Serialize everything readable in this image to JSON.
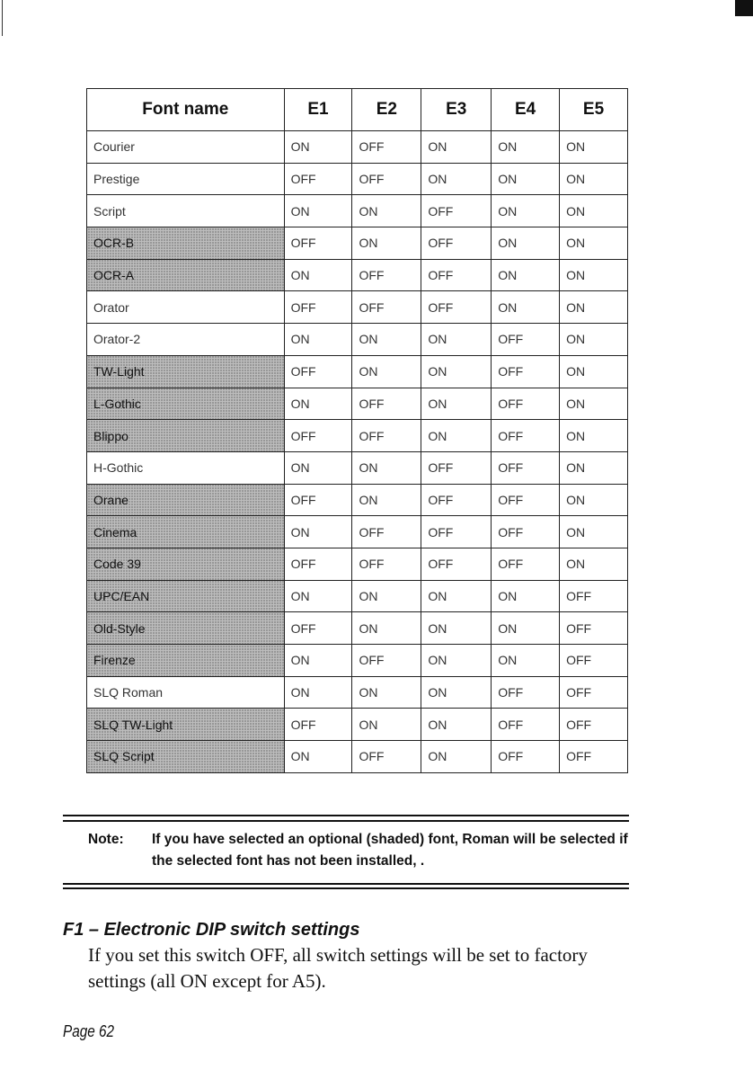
{
  "table": {
    "headers": [
      "Font name",
      "E1",
      "E2",
      "E3",
      "E4",
      "E5"
    ],
    "rows": [
      {
        "name": "Courier",
        "shaded": false,
        "values": [
          "ON",
          "OFF",
          "ON",
          "ON",
          "ON"
        ]
      },
      {
        "name": "Prestige",
        "shaded": false,
        "values": [
          "OFF",
          "OFF",
          "ON",
          "ON",
          "ON"
        ]
      },
      {
        "name": "Script",
        "shaded": false,
        "values": [
          "ON",
          "ON",
          "OFF",
          "ON",
          "ON"
        ]
      },
      {
        "name": "OCR-B",
        "shaded": true,
        "values": [
          "OFF",
          "ON",
          "OFF",
          "ON",
          "ON"
        ]
      },
      {
        "name": "OCR-A",
        "shaded": true,
        "values": [
          "ON",
          "OFF",
          "OFF",
          "ON",
          "ON"
        ]
      },
      {
        "name": "Orator",
        "shaded": false,
        "values": [
          "OFF",
          "OFF",
          "OFF",
          "ON",
          "ON"
        ]
      },
      {
        "name": "Orator-2",
        "shaded": false,
        "values": [
          "ON",
          "ON",
          "ON",
          "OFF",
          "ON"
        ]
      },
      {
        "name": "TW-Light",
        "shaded": true,
        "values": [
          "OFF",
          "ON",
          "ON",
          "OFF",
          "ON"
        ]
      },
      {
        "name": "L-Gothic",
        "shaded": true,
        "values": [
          "ON",
          "OFF",
          "ON",
          "OFF",
          "ON"
        ]
      },
      {
        "name": "Blippo",
        "shaded": true,
        "values": [
          "OFF",
          "OFF",
          "ON",
          "OFF",
          "ON"
        ]
      },
      {
        "name": "H-Gothic",
        "shaded": false,
        "values": [
          "ON",
          "ON",
          "OFF",
          "OFF",
          "ON"
        ]
      },
      {
        "name": "Orane",
        "shaded": true,
        "values": [
          "OFF",
          "ON",
          "OFF",
          "OFF",
          "ON"
        ]
      },
      {
        "name": "Cinema",
        "shaded": true,
        "values": [
          "ON",
          "OFF",
          "OFF",
          "OFF",
          "ON"
        ]
      },
      {
        "name": "Code 39",
        "shaded": true,
        "values": [
          "OFF",
          "OFF",
          "OFF",
          "OFF",
          "ON"
        ]
      },
      {
        "name": "UPC/EAN",
        "shaded": true,
        "values": [
          "ON",
          "ON",
          "ON",
          "ON",
          "OFF"
        ]
      },
      {
        "name": "Old-Style",
        "shaded": true,
        "values": [
          "OFF",
          "ON",
          "ON",
          "ON",
          "OFF"
        ]
      },
      {
        "name": "Firenze",
        "shaded": true,
        "values": [
          "ON",
          "OFF",
          "ON",
          "ON",
          "OFF"
        ]
      },
      {
        "name": "SLQ Roman",
        "shaded": false,
        "values": [
          "ON",
          "ON",
          "ON",
          "OFF",
          "OFF"
        ]
      },
      {
        "name": "SLQ TW-Light",
        "shaded": true,
        "values": [
          "OFF",
          "ON",
          "ON",
          "OFF",
          "OFF"
        ]
      },
      {
        "name": "SLQ Script",
        "shaded": true,
        "values": [
          "ON",
          "OFF",
          "ON",
          "OFF",
          "OFF"
        ]
      }
    ]
  },
  "note": {
    "label": "Note:",
    "text": "If you have selected an optional (shaded) font, Roman will be selected if the selected font  has not been installed, ."
  },
  "section": {
    "heading": "F1 – Electronic DIP switch settings",
    "body": "If you set this switch OFF, all switch settings will be set to factory settings (all ON except for A5)."
  },
  "footer": {
    "page": "Page 62"
  }
}
